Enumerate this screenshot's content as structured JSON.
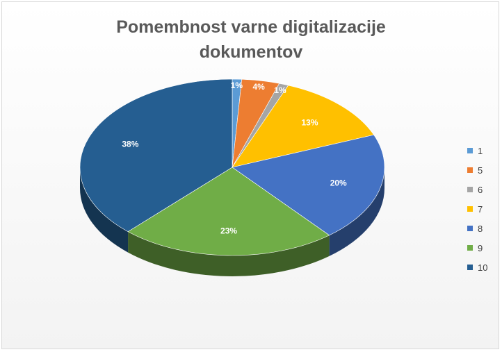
{
  "chart_data": {
    "type": "pie",
    "title": "Pomembnost varne digitalizacije dokumentov",
    "title_lines": [
      "Pomembnost varne digitalizacije",
      "dokumentov"
    ],
    "style": "3d",
    "legend_position": "right",
    "categories": [
      "1",
      "5",
      "6",
      "7",
      "8",
      "9",
      "10"
    ],
    "values": [
      1,
      4,
      1,
      13,
      20,
      23,
      38
    ],
    "data_labels": [
      "1%",
      "4%",
      "1%",
      "13%",
      "20%",
      "23%",
      "38%"
    ],
    "colors": [
      "#5b9bd5",
      "#ed7d31",
      "#a5a5a5",
      "#ffc000",
      "#4472c4",
      "#70ad47",
      "#255e91"
    ]
  }
}
